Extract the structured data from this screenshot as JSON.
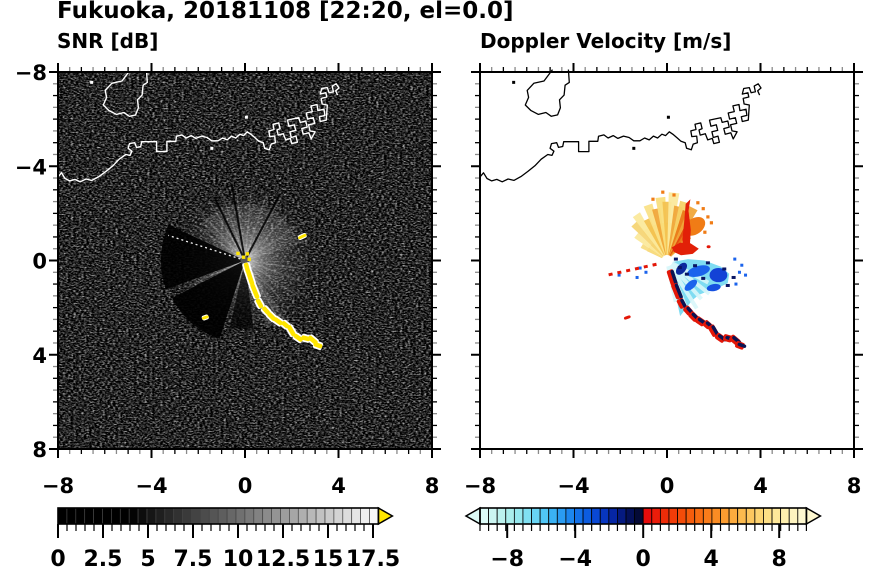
{
  "title": "Fukuoka, 20181108 [22:20, el=0.0]",
  "chart_data": {
    "type": "heatmap",
    "suptitle": "Fukuoka, 20181108 [22:20, el=0.0]",
    "panels": [
      {
        "title": "SNR [dB]",
        "bg": "#000000",
        "coast_color": "#ffffff",
        "colorbar": {
          "range": [
            0,
            17.8
          ],
          "segments": 36,
          "colormap": "grayscale-black-to-white",
          "overflow_color": "#ffe600",
          "tick_values": [
            0,
            2.5,
            5,
            7.5,
            10,
            12.5,
            15,
            17.5
          ],
          "tick_labels": [
            "0",
            "2.5",
            "5",
            "7.5",
            "10",
            "12.5",
            "15",
            "17.5"
          ],
          "minor_step": 0.5
        },
        "description": "Radar SNR field: dark speckle background, bright echo fan around radar origin (0,0), beam-blockage dark wedges toward the west-southwest, saturated yellow ground-clutter streak from origin toward (3.2,-3.6), isolated clutter dashes near (2.45,1.0) and (-1.7,-2.4)."
      },
      {
        "title": "Doppler Velocity [m/s]",
        "bg": "#ffffff",
        "coast_color": "#000000",
        "colorbar": {
          "range": [
            -9.6,
            9.6
          ],
          "segments": 38,
          "tick_values": [
            -8,
            -4,
            0,
            4,
            8
          ],
          "tick_labels": [
            "−8",
            "−4",
            "0",
            "4",
            "8"
          ],
          "colors": [
            "#dcfbf7",
            "#ccf6f2",
            "#bcf2ee",
            "#aaeeec",
            "#96e8ee",
            "#80e0f2",
            "#68d4f4",
            "#50c6f6",
            "#3ab2f4",
            "#2a9cf2",
            "#1c86ee",
            "#1270e8",
            "#0c5ce0",
            "#0948d4",
            "#0736c0",
            "#0626a4",
            "#051a80",
            "#041058",
            "#040a36",
            "#e60c0c",
            "#ea1c0a",
            "#ee2c08",
            "#f13c08",
            "#f34c09",
            "#f55c0c",
            "#f76c12",
            "#f97c1a",
            "#fa8c24",
            "#fb9c30",
            "#fcab3e",
            "#fcba4e",
            "#fdc75f",
            "#fdd472",
            "#fedf86",
            "#fee89a",
            "#feefae",
            "#fef4c0",
            "#fef8d0"
          ]
        },
        "description": "Doppler velocity: outbound pale-yellow/orange fan north of radar, red maxima on its east flank, inbound cyan/blue lobe southeast of radar, near-zero navy/red clutter streak toward (3.2,-3.6)."
      }
    ],
    "axes": {
      "range": [
        -8,
        8
      ],
      "major_ticks": [
        -8,
        -4,
        0,
        4,
        8
      ],
      "minor_step": 0.5,
      "x_tick_labels": [
        "−8",
        "−4",
        "0",
        "4",
        "8"
      ],
      "y_tick_labels": [
        "8",
        "4",
        "0",
        "−4",
        "−8"
      ]
    },
    "coastline": {
      "main": [
        [
          -8,
          3.55
        ],
        [
          -7.85,
          3.72
        ],
        [
          -7.7,
          3.48
        ],
        [
          -7.5,
          3.38
        ],
        [
          -7.28,
          3.44
        ],
        [
          -7.05,
          3.34
        ],
        [
          -6.8,
          3.46
        ],
        [
          -6.55,
          3.4
        ],
        [
          -6.25,
          3.56
        ],
        [
          -5.95,
          3.78
        ],
        [
          -5.65,
          4.02
        ],
        [
          -5.38,
          4.3
        ],
        [
          -5.1,
          4.5
        ],
        [
          -4.92,
          4.46
        ],
        [
          -4.84,
          4.64
        ],
        [
          -5.0,
          4.76
        ],
        [
          -4.94,
          4.96
        ],
        [
          -4.72,
          5.0
        ],
        [
          -4.64,
          4.8
        ],
        [
          -4.46,
          4.84
        ],
        [
          -4.42,
          5.04
        ],
        [
          -3.78,
          5.04
        ],
        [
          -3.78,
          4.62
        ],
        [
          -3.34,
          4.62
        ],
        [
          -3.34,
          5.06
        ],
        [
          -2.96,
          5.06
        ],
        [
          -2.93,
          5.27
        ],
        [
          -2.7,
          5.33
        ],
        [
          -2.52,
          5.2
        ],
        [
          -2.3,
          5.3
        ],
        [
          -2.1,
          5.18
        ],
        [
          -1.86,
          5.28
        ],
        [
          -1.62,
          5.22
        ],
        [
          -1.42,
          5.08
        ],
        [
          -1.16,
          5.08
        ],
        [
          -0.96,
          5.2
        ],
        [
          -0.76,
          5.12
        ],
        [
          -0.58,
          5.28
        ],
        [
          -0.4,
          5.2
        ],
        [
          -0.22,
          5.36
        ],
        [
          -0.06,
          5.3
        ],
        [
          0.1,
          5.46
        ],
        [
          0.28,
          5.34
        ],
        [
          0.44,
          5.2
        ],
        [
          0.6,
          5.06
        ],
        [
          0.78,
          5.0
        ],
        [
          0.84,
          4.76
        ],
        [
          1.04,
          4.7
        ],
        [
          1.12,
          4.94
        ],
        [
          1.3,
          5.0
        ],
        [
          1.27,
          5.28
        ],
        [
          1.06,
          5.26
        ],
        [
          1.02,
          5.5
        ],
        [
          1.24,
          5.56
        ],
        [
          1.2,
          5.78
        ],
        [
          1.44,
          5.84
        ],
        [
          1.5,
          5.6
        ],
        [
          1.37,
          5.54
        ],
        [
          1.42,
          5.32
        ],
        [
          1.64,
          5.38
        ],
        [
          1.74,
          5.12
        ],
        [
          1.94,
          5.18
        ],
        [
          2.0,
          4.96
        ],
        [
          2.24,
          5.02
        ],
        [
          2.18,
          5.28
        ],
        [
          1.98,
          5.22
        ],
        [
          1.92,
          5.46
        ],
        [
          2.17,
          5.52
        ],
        [
          2.11,
          5.76
        ],
        [
          1.88,
          5.7
        ],
        [
          1.82,
          5.96
        ],
        [
          2.09,
          6.02
        ],
        [
          2.3,
          6.06
        ],
        [
          2.36,
          5.86
        ],
        [
          2.6,
          5.92
        ],
        [
          2.66,
          5.66
        ],
        [
          2.43,
          5.6
        ],
        [
          2.49,
          5.36
        ],
        [
          2.73,
          5.42
        ],
        [
          2.83,
          5.16
        ],
        [
          3.0,
          5.46
        ],
        [
          2.78,
          5.5
        ],
        [
          2.72,
          5.76
        ],
        [
          2.98,
          5.82
        ],
        [
          2.92,
          6.06
        ],
        [
          2.68,
          6.0
        ],
        [
          2.62,
          6.26
        ],
        [
          2.88,
          6.32
        ],
        [
          2.82,
          6.56
        ],
        [
          3.08,
          6.62
        ],
        [
          3.12,
          6.36
        ],
        [
          3.38,
          6.42
        ],
        [
          3.42,
          6.16
        ],
        [
          3.18,
          6.1
        ],
        [
          3.22,
          5.9
        ],
        [
          3.48,
          5.96
        ],
        [
          3.52,
          6.6
        ],
        [
          3.3,
          6.64
        ],
        [
          3.26,
          6.88
        ],
        [
          3.5,
          6.94
        ],
        [
          3.46,
          7.12
        ],
        [
          3.22,
          7.06
        ],
        [
          3.28,
          7.3
        ],
        [
          3.52,
          7.34
        ],
        [
          3.6,
          7.12
        ],
        [
          3.78,
          7.16
        ],
        [
          3.73,
          7.4
        ],
        [
          3.9,
          7.5
        ],
        [
          4.02,
          7.32
        ],
        [
          3.88,
          7.2
        ],
        [
          3.96,
          7.02
        ]
      ],
      "island": [
        [
          -4.9,
          8.1
        ],
        [
          -5.26,
          7.62
        ],
        [
          -5.7,
          7.52
        ],
        [
          -5.98,
          7.22
        ],
        [
          -5.92,
          6.92
        ],
        [
          -6.06,
          6.6
        ],
        [
          -5.82,
          6.36
        ],
        [
          -5.5,
          6.2
        ],
        [
          -5.18,
          6.28
        ],
        [
          -4.95,
          6.12
        ],
        [
          -4.68,
          6.18
        ],
        [
          -4.56,
          6.48
        ],
        [
          -4.6,
          6.82
        ],
        [
          -4.4,
          7.02
        ],
        [
          -4.36,
          7.44
        ],
        [
          -4.18,
          7.56
        ],
        [
          -4.22,
          8.1
        ]
      ],
      "dots": [
        [
          -6.56,
          7.56
        ],
        [
          0.06,
          6.08
        ],
        [
          -1.42,
          4.76
        ]
      ]
    },
    "snr_features": {
      "fan_radius": 3.4,
      "dark_wedges": [
        [
          155,
          200,
          3.6,
          0.9
        ],
        [
          207,
          252,
          3.5,
          0.92
        ],
        [
          257,
          277,
          2.9,
          0.7
        ]
      ],
      "dark_rays": [
        [
          62,
          3.2
        ],
        [
          100,
          3.3
        ],
        [
          116,
          3.0
        ]
      ],
      "bright_rays": [
        [
          18,
          2.8
        ],
        [
          33,
          3.1
        ],
        [
          47,
          3.0
        ],
        [
          60,
          3.3
        ],
        [
          72,
          3.0
        ],
        [
          85,
          3.4
        ],
        [
          97,
          3.1
        ],
        [
          109,
          3.3
        ],
        [
          121,
          3.0
        ],
        [
          133,
          3.2
        ],
        [
          145,
          2.6
        ],
        [
          204,
          2.4
        ],
        [
          352,
          2.4
        ],
        [
          340,
          2.5
        ],
        [
          326,
          2.7
        ],
        [
          313,
          2.4
        ],
        [
          300,
          3.0
        ],
        [
          292,
          2.3
        ]
      ],
      "bright_sectors": [
        [
          288,
          306,
          3.0,
          0.12
        ],
        [
          20,
          140,
          2.4,
          0.1
        ]
      ],
      "dashed_ray": [
        162,
        3.45
      ],
      "streak": [
        [
          0.08,
          -0.3,
          75,
          10
        ],
        [
          0.22,
          -0.72,
          72,
          16
        ],
        [
          0.42,
          -1.3,
          68,
          16
        ],
        [
          0.62,
          -1.82,
          62,
          10
        ],
        [
          0.9,
          -2.12,
          48,
          9
        ],
        [
          1.14,
          -2.38,
          45,
          10
        ],
        [
          1.42,
          -2.58,
          35,
          10
        ],
        [
          1.72,
          -2.72,
          40,
          8
        ],
        [
          1.98,
          -2.98,
          60,
          12
        ],
        [
          2.28,
          -3.28,
          35,
          10
        ],
        [
          2.6,
          -3.3,
          15,
          9
        ],
        [
          2.9,
          -3.38,
          40,
          11
        ],
        [
          3.12,
          -3.6,
          20,
          9
        ]
      ],
      "isolated": [
        [
          2.45,
          1.02,
          -25,
          9
        ],
        [
          -1.7,
          -2.42,
          -20,
          7
        ]
      ],
      "center_dots": [
        [
          0.1,
          0.28
        ],
        [
          0.18,
          0.05
        ],
        [
          -0.3,
          0.3
        ],
        [
          -0.06,
          0.14
        ]
      ],
      "streak_color": "#ffe600",
      "fringe_color": "#ffffff"
    },
    "velocity_features": {
      "fan_spikes": [
        [
          150,
          1.25,
          "#f8dd84"
        ],
        [
          141,
          1.7,
          "#fbe99c"
        ],
        [
          132,
          2.1,
          "#f6d575"
        ],
        [
          124,
          2.35,
          "#fbe99c"
        ],
        [
          116,
          1.95,
          "#f3c250"
        ],
        [
          109,
          2.5,
          "#fae288"
        ],
        [
          102,
          2.25,
          "#f0a63a"
        ],
        [
          96,
          2.7,
          "#f9de7c"
        ],
        [
          90,
          2.5,
          "#f3c250"
        ],
        [
          84,
          2.9,
          "#fbe99c"
        ],
        [
          78,
          2.35,
          "#f0a63a"
        ],
        [
          73,
          2.6,
          "#f6d267"
        ],
        [
          68,
          2.25,
          "#ea7a18"
        ],
        [
          63,
          2.5,
          "#f0a63a"
        ],
        [
          58,
          2.0,
          "#e4490c"
        ],
        [
          53,
          1.7,
          "#ea7a18"
        ],
        [
          47,
          1.4,
          "#f0a63a"
        ]
      ],
      "fan_base_color": "#f3bc46",
      "fan_mid_color": "#f7cd58",
      "orange_blob": [
        1.18,
        1.45,
        0.5,
        0.34,
        -35,
        "#f07c16"
      ],
      "red_column": [
        [
          0.72,
          0.35
        ],
        [
          0.97,
          0.52
        ],
        [
          1.02,
          1.3
        ],
        [
          0.92,
          2.1
        ],
        [
          1.0,
          2.6
        ],
        [
          0.8,
          2.4
        ],
        [
          0.73,
          1.6
        ],
        [
          0.66,
          0.9
        ]
      ],
      "red_blob": [
        [
          0.2,
          0.55
        ],
        [
          0.55,
          0.76
        ],
        [
          1.0,
          0.73
        ],
        [
          1.36,
          0.5
        ],
        [
          1.1,
          0.28
        ],
        [
          0.6,
          0.22
        ],
        [
          0.3,
          0.36
        ]
      ],
      "orange_specks": [
        [
          1.55,
          2.2
        ],
        [
          1.32,
          2.45
        ],
        [
          1.75,
          1.85
        ],
        [
          0.3,
          2.78
        ],
        [
          -0.18,
          2.9
        ],
        [
          1.9,
          1.6
        ],
        [
          -0.6,
          2.6
        ],
        [
          1.62,
          1.2
        ]
      ],
      "cyan_blob": [
        [
          0.25,
          -0.06
        ],
        [
          0.9,
          0.06
        ],
        [
          1.6,
          0.0
        ],
        [
          2.3,
          -0.26
        ],
        [
          2.66,
          -0.56
        ],
        [
          2.6,
          -0.96
        ],
        [
          2.2,
          -1.16
        ],
        [
          1.76,
          -1.3
        ],
        [
          1.36,
          -1.46
        ],
        [
          1.06,
          -1.7
        ],
        [
          0.76,
          -2.1
        ],
        [
          0.56,
          -2.36
        ],
        [
          0.46,
          -1.9
        ],
        [
          0.36,
          -1.2
        ],
        [
          0.23,
          -0.5
        ]
      ],
      "pale_rays": [
        [
          -28,
          2.0
        ],
        [
          -38,
          2.3
        ],
        [
          -48,
          2.2
        ],
        [
          -58,
          2.4
        ],
        [
          -68,
          2.1
        ],
        [
          -78,
          1.8
        ]
      ],
      "blue_patches": [
        [
          1.35,
          -0.45,
          0.5,
          0.22,
          -15,
          "#1b63ec"
        ],
        [
          2.2,
          -0.62,
          0.38,
          0.3,
          0,
          "#1342d6"
        ],
        [
          1.02,
          -1.05,
          0.32,
          0.16,
          -40,
          "#1b63ec"
        ],
        [
          2.0,
          -1.15,
          0.3,
          0.15,
          -10,
          "#1550e0"
        ],
        [
          0.62,
          -0.35,
          0.3,
          0.18,
          -50,
          "#0d2a9e"
        ]
      ],
      "navy_specks": [
        [
          0.55,
          -0.3
        ],
        [
          0.85,
          -0.58
        ],
        [
          1.55,
          -0.76
        ],
        [
          2.45,
          -0.36
        ],
        [
          2.85,
          -0.72
        ],
        [
          1.2,
          -0.22
        ],
        [
          2.6,
          -1.06
        ],
        [
          0.38,
          0.06
        ],
        [
          1.75,
          -0.1
        ]
      ],
      "blue_specks": [
        [
          3.1,
          -0.5
        ],
        [
          3.36,
          -0.62
        ],
        [
          2.95,
          -1.0
        ],
        [
          3.2,
          -0.2
        ],
        [
          2.9,
          0.06
        ],
        [
          -0.9,
          -0.5
        ],
        [
          -1.28,
          -0.72
        ],
        [
          -2.05,
          -0.62
        ],
        [
          -1.15,
          -0.32
        ]
      ],
      "red_dash_ray": [
        [
          -0.45,
          -0.16
        ],
        [
          -2.55,
          -0.62
        ]
      ],
      "streak_core": "#0a1454",
      "streak_edge": "#e31708",
      "white_hole_r": 5.5,
      "isolated_red": [
        [
          -1.7,
          -2.42,
          -20,
          7
        ],
        [
          1.78,
          0.58,
          0,
          4
        ]
      ]
    }
  }
}
